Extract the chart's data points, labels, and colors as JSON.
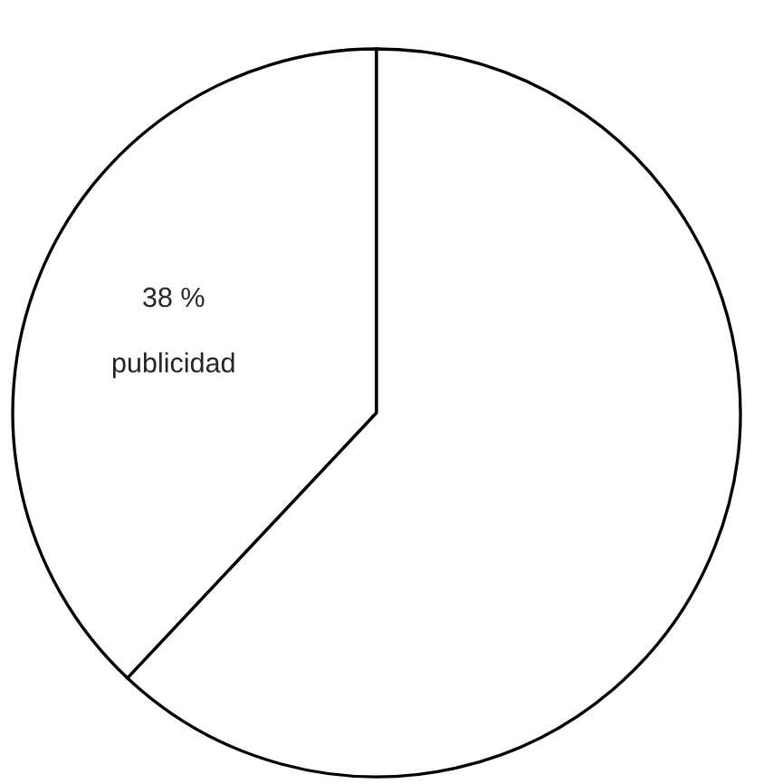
{
  "chart_data": {
    "type": "pie",
    "categories": [
      "publicidad",
      null
    ],
    "values": [
      38,
      62
    ],
    "colors": [
      "#ffffff",
      "#ffffff"
    ],
    "value_labels": [
      "38 %",
      null
    ]
  }
}
